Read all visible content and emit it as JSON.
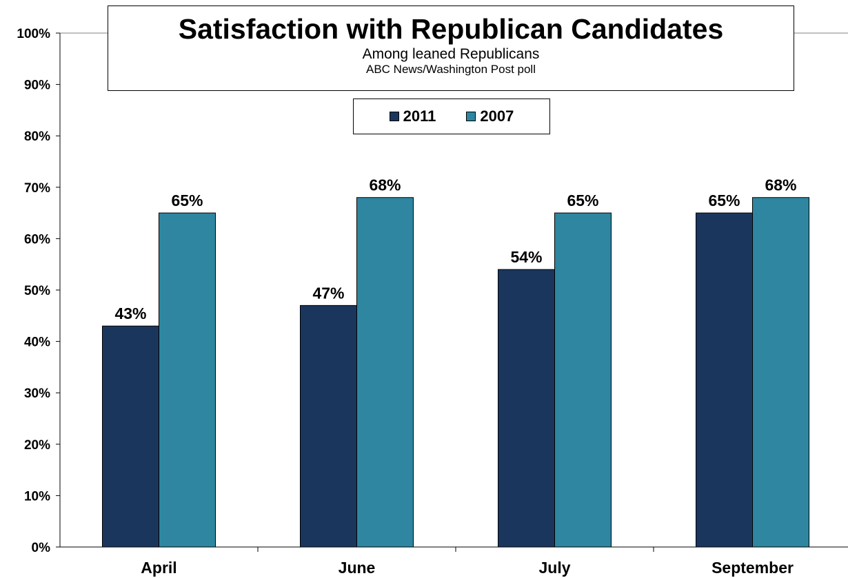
{
  "chart_data": {
    "type": "bar",
    "title": "Satisfaction with Republican Candidates",
    "subtitle": "Among leaned Republicans",
    "source": "ABC News/Washington  Post poll",
    "categories": [
      "April",
      "June",
      "July",
      "September"
    ],
    "series": [
      {
        "name": "2011",
        "color": "#1b365d",
        "values": [
          43,
          47,
          54,
          65
        ],
        "labels": [
          "43%",
          "47%",
          "54%",
          "65%"
        ]
      },
      {
        "name": "2007",
        "color": "#2e86a0",
        "values": [
          65,
          68,
          65,
          68
        ],
        "labels": [
          "65%",
          "68%",
          "65%",
          "68%"
        ]
      }
    ],
    "yticks": [
      "0%",
      "10%",
      "20%",
      "30%",
      "40%",
      "50%",
      "60%",
      "70%",
      "80%",
      "90%",
      "100%"
    ],
    "ylim": [
      0,
      100
    ],
    "grid": false,
    "legend_position": "top-center"
  }
}
